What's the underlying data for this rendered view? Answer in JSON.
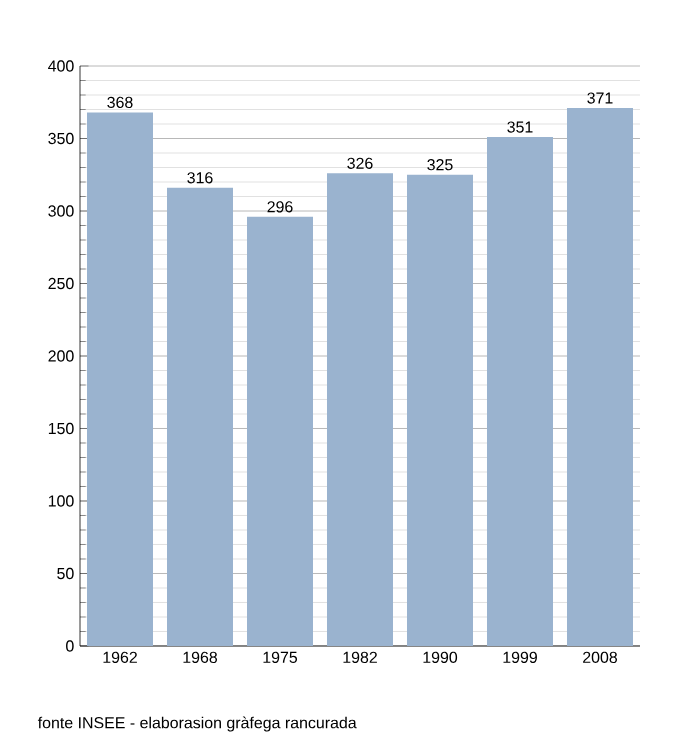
{
  "chart_data": {
    "type": "bar",
    "categories": [
      "1962",
      "1968",
      "1975",
      "1982",
      "1990",
      "1999",
      "2008"
    ],
    "values": [
      368,
      316,
      296,
      326,
      325,
      351,
      371
    ],
    "color": "#9ab3cf",
    "ylim": [
      0,
      400
    ],
    "yticks": [
      0,
      50,
      100,
      150,
      200,
      250,
      300,
      350,
      400
    ],
    "grid": "y",
    "data_labels": true,
    "annotations": [
      "fonte INSEE - elaborasion gràfega rancurada"
    ]
  }
}
